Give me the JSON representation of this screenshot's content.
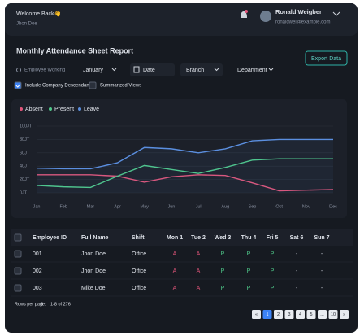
{
  "header": {
    "greeting": "Welcome Back👋",
    "subtitle": "Jhon Doe",
    "user_name": "Ronald Weigber",
    "user_email": "ronaldwei@example.com"
  },
  "report": {
    "title": "Monthly Attendance Sheet Report",
    "export_button": "Export Data"
  },
  "filters": {
    "search_placeholder": "Employee Working",
    "month": "January",
    "date": "Date",
    "branch": "Branch",
    "department": "Department",
    "checkboxes": [
      {
        "label": "Include Company Descendant",
        "checked": true
      },
      {
        "label": "Summarized Views",
        "checked": false
      }
    ]
  },
  "chart_data": {
    "type": "line",
    "categories": [
      "Jan",
      "Feb",
      "Mar",
      "Apr",
      "May",
      "Jun",
      "Jul",
      "Aug",
      "Sep",
      "Oct",
      "Nov",
      "Dec"
    ],
    "series": [
      {
        "name": "Absent",
        "color": "#e2557a",
        "values": [
          27,
          27,
          27,
          25,
          16,
          24,
          27,
          26,
          15,
          3,
          4,
          5
        ]
      },
      {
        "name": "Present",
        "color": "#4fc98a",
        "values": [
          11,
          9,
          8,
          25,
          41,
          35,
          29,
          38,
          49,
          51,
          51,
          51
        ]
      },
      {
        "name": "Leave",
        "color": "#5b8fe0",
        "values": [
          37,
          36,
          36,
          45,
          68,
          66,
          60,
          66,
          78,
          80,
          80,
          80
        ]
      }
    ],
    "ylim": [
      0,
      100
    ],
    "yticks": [
      {
        "value": 0,
        "label": "0JT"
      },
      {
        "value": 20,
        "label": "20JT"
      },
      {
        "value": 40,
        "label": "40JT"
      },
      {
        "value": 60,
        "label": "60JT"
      },
      {
        "value": 80,
        "label": "80JT"
      },
      {
        "value": 100,
        "label": "100JT"
      }
    ],
    "grid": true,
    "legend": "top-left"
  },
  "table": {
    "columns": [
      "Employee ID",
      "Full Name",
      "Shift",
      "Mon 1",
      "Tue 2",
      "Wed 3",
      "Thu 4",
      "Fri 5",
      "Sat 6",
      "Sun 7"
    ],
    "rows": [
      [
        "001",
        "Jhon Doe",
        "Office",
        "A",
        "A",
        "P",
        "P",
        "P",
        "-",
        "-"
      ],
      [
        "002",
        "Jhon Doe",
        "Office",
        "A",
        "A",
        "P",
        "P",
        "P",
        "-",
        "-"
      ],
      [
        "003",
        "Mike Doe",
        "Office",
        "A",
        "A",
        "P",
        "P",
        "P",
        "-",
        "-"
      ]
    ],
    "status_colors": {
      "A": "#e2557a",
      "P": "#4fc98a",
      "-": "#c9ced8"
    }
  },
  "footer": {
    "rows_per_page_label": "Rows per page:",
    "rows_per_page": 8,
    "range": "1-8 of 276",
    "pages": [
      "«",
      "1",
      "2",
      "3",
      "4",
      "5",
      "...",
      "10",
      "»"
    ],
    "current_page": 1
  }
}
